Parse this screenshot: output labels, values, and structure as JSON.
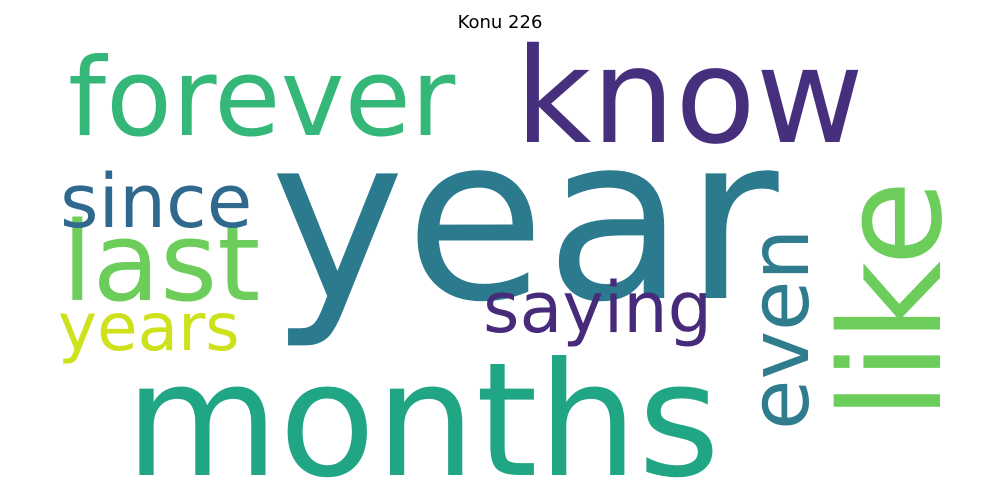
{
  "title": "Konu 226",
  "words": [
    {
      "text": "year",
      "color": "#2c7a8e"
    },
    {
      "text": "months",
      "color": "#21a685"
    },
    {
      "text": "forever",
      "color": "#35b779"
    },
    {
      "text": "know",
      "color": "#46307e"
    },
    {
      "text": "like",
      "color": "#6ccd5a"
    },
    {
      "text": "last",
      "color": "#6ccd5a"
    },
    {
      "text": "since",
      "color": "#30698e"
    },
    {
      "text": "even",
      "color": "#2f7c8e"
    },
    {
      "text": "saying",
      "color": "#472b7a"
    },
    {
      "text": "years",
      "color": "#cde11d"
    }
  ]
}
